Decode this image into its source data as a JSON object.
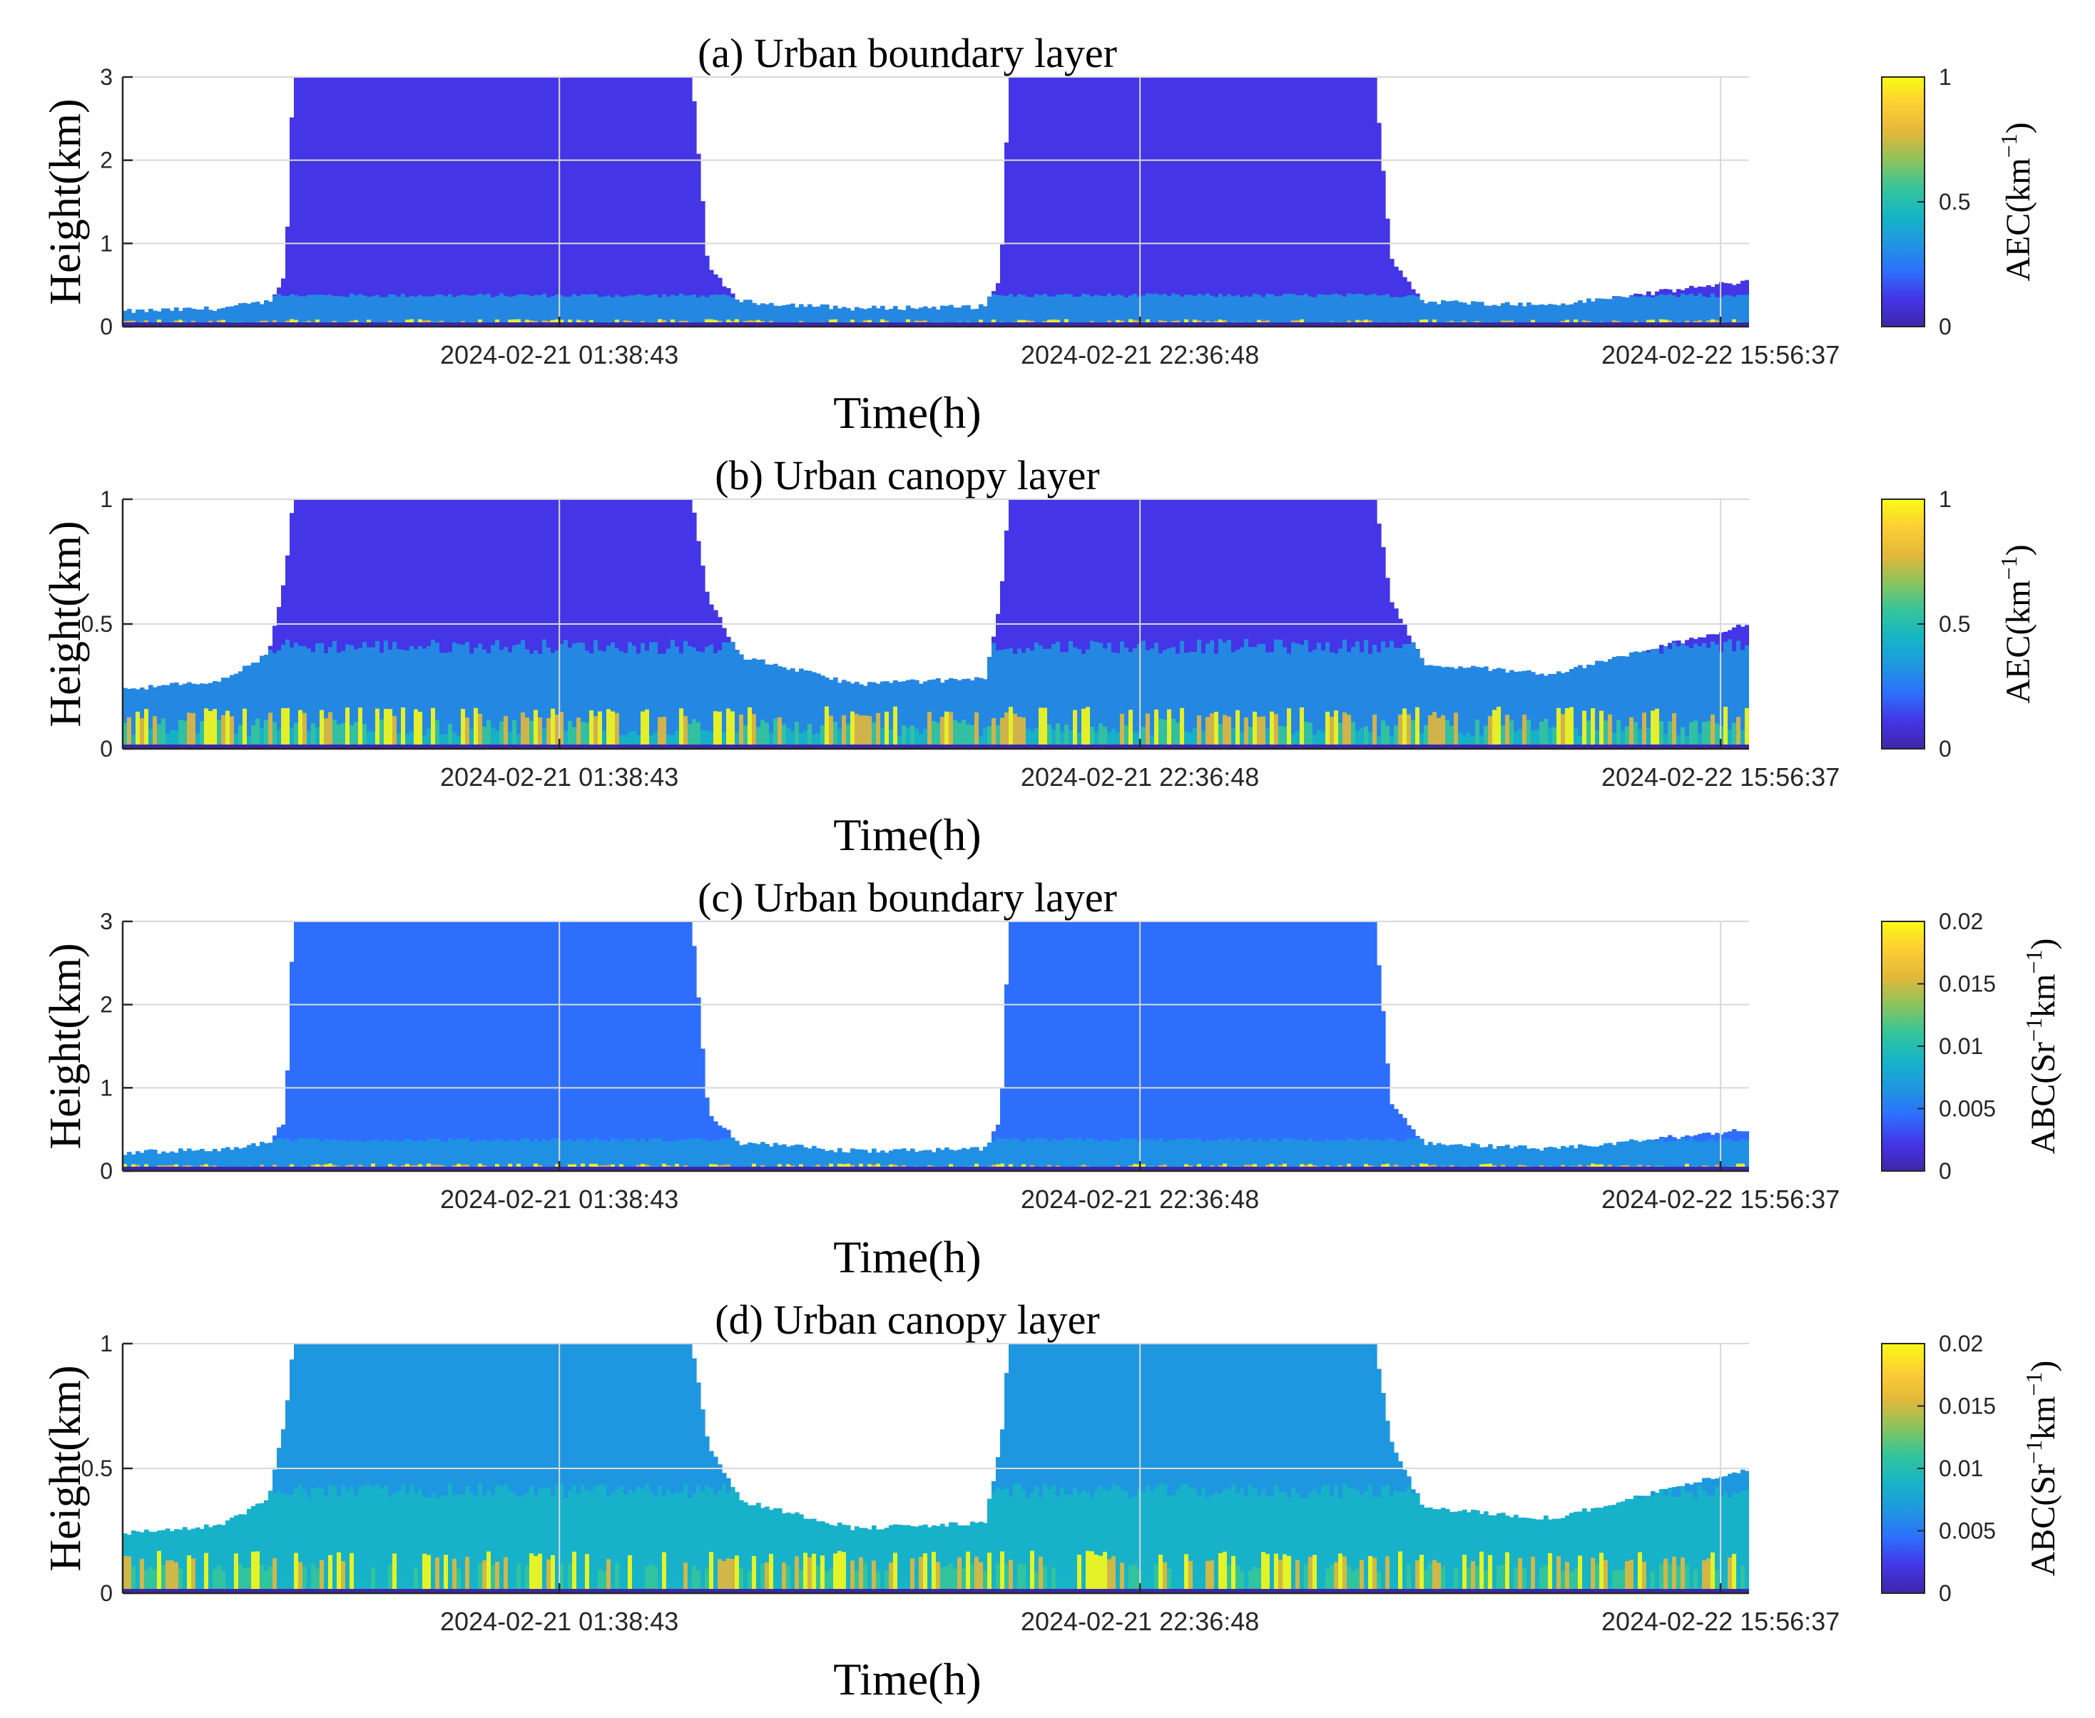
{
  "chart_data": [
    {
      "type": "heatmap",
      "title": "(a) Urban boundary layer",
      "xlabel": "Time(h)",
      "ylabel": "Height(km)",
      "xticks": [
        "2024-02-21 01:38:43",
        "2024-02-21 22:36:48",
        "2024-02-22 15:56:37"
      ],
      "yticks": [
        "0",
        "1",
        "2",
        "3"
      ],
      "ylim": [
        0,
        3
      ],
      "colorbar": {
        "label": "AEC(km",
        "label_sup": "−1",
        "label_tail": ")",
        "ticks": [
          "0",
          "0.5",
          "1"
        ],
        "range": [
          0,
          1
        ]
      },
      "data_top_envelope_km": [
        [
          0.0,
          0.18
        ],
        [
          0.06,
          0.22
        ],
        [
          0.09,
          0.3
        ],
        [
          0.1,
          0.6
        ],
        [
          0.105,
          3.0
        ],
        [
          0.35,
          3.0
        ],
        [
          0.36,
          0.7
        ],
        [
          0.38,
          0.3
        ],
        [
          0.45,
          0.22
        ],
        [
          0.53,
          0.24
        ],
        [
          0.54,
          0.6
        ],
        [
          0.545,
          3.0
        ],
        [
          0.77,
          3.0
        ],
        [
          0.78,
          0.8
        ],
        [
          0.8,
          0.3
        ],
        [
          0.88,
          0.26
        ],
        [
          1.0,
          0.55
        ]
      ]
    },
    {
      "type": "heatmap",
      "title": "(b) Urban canopy layer",
      "xlabel": "Time(h)",
      "ylabel": "Height(km)",
      "xticks": [
        "2024-02-21 01:38:43",
        "2024-02-21 22:36:48",
        "2024-02-22 15:56:37"
      ],
      "yticks": [
        "0",
        "0.5",
        "1"
      ],
      "ylim": [
        0,
        1
      ],
      "colorbar": {
        "label": "AEC(km",
        "label_sup": "−1",
        "label_tail": ")",
        "ticks": [
          "0",
          "0.5",
          "1"
        ],
        "range": [
          0,
          1
        ]
      },
      "data_top_envelope_km": [
        [
          0.0,
          0.24
        ],
        [
          0.06,
          0.27
        ],
        [
          0.09,
          0.38
        ],
        [
          0.1,
          0.7
        ],
        [
          0.105,
          1.0
        ],
        [
          0.35,
          1.0
        ],
        [
          0.36,
          0.6
        ],
        [
          0.38,
          0.37
        ],
        [
          0.45,
          0.26
        ],
        [
          0.53,
          0.28
        ],
        [
          0.54,
          0.6
        ],
        [
          0.545,
          1.0
        ],
        [
          0.77,
          1.0
        ],
        [
          0.78,
          0.6
        ],
        [
          0.8,
          0.34
        ],
        [
          0.88,
          0.3
        ],
        [
          1.0,
          0.5
        ]
      ]
    },
    {
      "type": "heatmap",
      "title": "(c) Urban boundary layer",
      "xlabel": "Time(h)",
      "ylabel": "Height(km)",
      "xticks": [
        "2024-02-21 01:38:43",
        "2024-02-21 22:36:48",
        "2024-02-22 15:56:37"
      ],
      "yticks": [
        "0",
        "1",
        "2",
        "3"
      ],
      "ylim": [
        0,
        3
      ],
      "colorbar": {
        "label": "ABC(Sr",
        "label_sup": "−1",
        "label_mid": "km",
        "label_sup2": "−1",
        "label_tail": ")",
        "ticks": [
          "0",
          "0.005",
          "0.01",
          "0.015",
          "0.02"
        ],
        "range": [
          0,
          0.02
        ]
      },
      "data_top_envelope_km": [
        [
          0.0,
          0.22
        ],
        [
          0.06,
          0.26
        ],
        [
          0.09,
          0.34
        ],
        [
          0.1,
          0.6
        ],
        [
          0.105,
          3.0
        ],
        [
          0.35,
          3.0
        ],
        [
          0.36,
          0.7
        ],
        [
          0.38,
          0.34
        ],
        [
          0.45,
          0.24
        ],
        [
          0.53,
          0.26
        ],
        [
          0.54,
          0.6
        ],
        [
          0.545,
          3.0
        ],
        [
          0.77,
          3.0
        ],
        [
          0.78,
          0.8
        ],
        [
          0.8,
          0.34
        ],
        [
          0.88,
          0.26
        ],
        [
          1.0,
          0.5
        ]
      ]
    },
    {
      "type": "heatmap",
      "title": "(d) Urban canopy layer",
      "xlabel": "Time(h)",
      "ylabel": "Height(km)",
      "xticks": [
        "2024-02-21 01:38:43",
        "2024-02-21 22:36:48",
        "2024-02-22 15:56:37"
      ],
      "yticks": [
        "0",
        "0.5",
        "1"
      ],
      "ylim": [
        0,
        1
      ],
      "colorbar": {
        "label": "ABC(Sr",
        "label_sup": "−1",
        "label_mid": "km",
        "label_sup2": "−1",
        "label_tail": ")",
        "ticks": [
          "0",
          "0.005",
          "0.01",
          "0.015",
          "0.02"
        ],
        "range": [
          0,
          0.02
        ]
      },
      "data_top_envelope_km": [
        [
          0.0,
          0.24
        ],
        [
          0.06,
          0.27
        ],
        [
          0.09,
          0.38
        ],
        [
          0.1,
          0.7
        ],
        [
          0.105,
          1.0
        ],
        [
          0.35,
          1.0
        ],
        [
          0.36,
          0.6
        ],
        [
          0.38,
          0.37
        ],
        [
          0.45,
          0.26
        ],
        [
          0.53,
          0.28
        ],
        [
          0.54,
          0.6
        ],
        [
          0.545,
          1.0
        ],
        [
          0.77,
          1.0
        ],
        [
          0.78,
          0.6
        ],
        [
          0.8,
          0.34
        ],
        [
          0.88,
          0.3
        ],
        [
          1.0,
          0.5
        ]
      ]
    }
  ],
  "colormap": [
    "#3e26a8",
    "#4435e7",
    "#2d6ffc",
    "#1f97e0",
    "#16b5c6",
    "#35c59a",
    "#8cc35c",
    "#e3b83a",
    "#fdce33",
    "#f9fb15"
  ]
}
